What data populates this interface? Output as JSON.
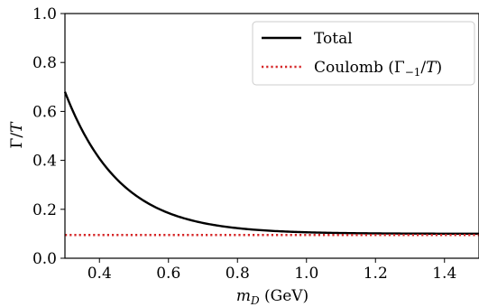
{
  "chart_data": {
    "type": "line",
    "title": "",
    "xlabel": "m_D (GeV)",
    "ylabel": "Γ/T",
    "xlim": [
      0.3,
      1.5
    ],
    "ylim": [
      0.0,
      1.0
    ],
    "xticks": [
      0.4,
      0.6,
      0.8,
      1.0,
      1.2,
      1.4
    ],
    "xtick_labels": [
      "0.4",
      "0.6",
      "0.8",
      "1.0",
      "1.2",
      "1.4"
    ],
    "yticks": [
      0.0,
      0.2,
      0.4,
      0.6,
      0.8,
      1.0
    ],
    "ytick_labels": [
      "0.0",
      "0.2",
      "0.4",
      "0.6",
      "0.8",
      "1.0"
    ],
    "grid": false,
    "legend_position": "top-right",
    "series": [
      {
        "name": "Total",
        "color": "#000000",
        "style": "solid",
        "x": [
          0.3,
          0.35,
          0.4,
          0.45,
          0.5,
          0.55,
          0.6,
          0.7,
          0.8,
          0.9,
          1.0,
          1.1,
          1.2,
          1.3,
          1.4,
          1.5
        ],
        "y": [
          0.68,
          0.48,
          0.355,
          0.28,
          0.23,
          0.195,
          0.175,
          0.148,
          0.132,
          0.122,
          0.116,
          0.111,
          0.108,
          0.105,
          0.103,
          0.101
        ]
      },
      {
        "name": "Coulomb (Γ₋₁/T)",
        "color": "#d62728",
        "style": "dotted",
        "x": [
          0.3,
          1.5
        ],
        "y": [
          0.095,
          0.095
        ]
      }
    ]
  }
}
